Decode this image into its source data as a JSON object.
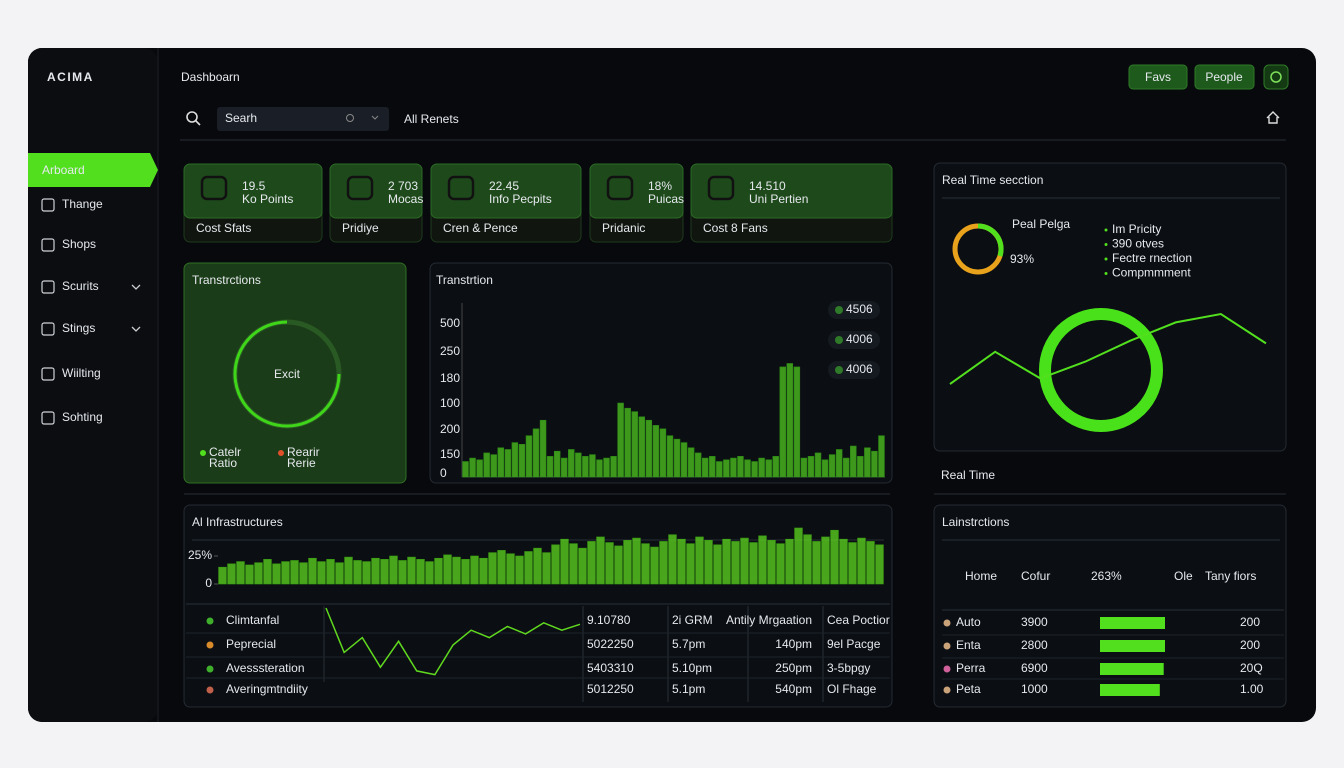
{
  "brand": "ACIMA",
  "header": {
    "title": "Dashboarn",
    "search_placeholder": "Searh",
    "filter": "All Renets",
    "buttons": [
      "Favs",
      "People"
    ]
  },
  "nav": [
    "Arboard",
    "Thange",
    "Shops",
    "Scurits",
    "Stings",
    "Wiilting",
    "Sohting"
  ],
  "stat_cards": [
    {
      "value": "19.5",
      "label": "Ko Points",
      "footer": "Cost Sfats"
    },
    {
      "value": "2 703",
      "label": "Mocas",
      "footer": "Pridiye"
    },
    {
      "value": "22.45",
      "label": "Info Pecpits",
      "footer": "Cren & Pence"
    },
    {
      "value": "18%",
      "label": "Puicas",
      "footer": "Pridanic"
    },
    {
      "value": "14.510",
      "label": "Uni Pertien",
      "footer": "Cost 8 Fans"
    }
  ],
  "donut_card": {
    "title": "Transtrctions",
    "center": "Excit",
    "legend": [
      {
        "name": "Catelr",
        "sub": "Ratio",
        "color": "#52e01e"
      },
      {
        "name": "Rearir",
        "sub": "Rerie",
        "color": "#e0502a"
      }
    ]
  },
  "transaction_chart": {
    "type": "bar",
    "title": "Transtrtion",
    "color": "#4fc71f",
    "y_labels": [
      "500",
      "250",
      "180",
      "100",
      "200",
      "150",
      "0"
    ],
    "legend": [
      "4506",
      "4006",
      "4006"
    ],
    "ylim": [
      0,
      500
    ],
    "values": [
      45,
      55,
      50,
      70,
      65,
      85,
      80,
      100,
      95,
      120,
      140,
      165,
      60,
      75,
      55,
      80,
      70,
      60,
      65,
      50,
      55,
      60,
      215,
      200,
      190,
      175,
      165,
      150,
      140,
      120,
      110,
      100,
      85,
      70,
      55,
      60,
      45,
      50,
      55,
      60,
      50,
      45,
      55,
      50,
      60,
      320,
      330,
      320,
      55,
      60,
      70,
      50,
      65,
      80,
      55,
      90,
      60,
      85,
      75,
      120
    ]
  },
  "infra_chart": {
    "type": "bar",
    "title": "Al Infrastructures",
    "color": "#5fd81f",
    "ylim": [
      0,
      50
    ],
    "yticks": [
      {
        "value": 25,
        "label": "25%"
      },
      0
    ],
    "values": [
      15,
      18,
      20,
      17,
      19,
      22,
      18,
      20,
      21,
      19,
      23,
      20,
      22,
      19,
      24,
      21,
      20,
      23,
      22,
      25,
      21,
      24,
      22,
      20,
      23,
      26,
      24,
      22,
      25,
      23,
      28,
      30,
      27,
      25,
      29,
      32,
      28,
      35,
      40,
      36,
      32,
      38,
      42,
      37,
      34,
      39,
      41,
      36,
      33,
      38,
      44,
      40,
      36,
      42,
      39,
      35,
      40,
      38,
      41,
      37,
      43,
      39,
      36,
      40,
      50,
      44,
      38,
      42,
      48,
      40,
      37,
      41,
      38,
      35
    ]
  },
  "table": {
    "trend": {
      "type": "line",
      "color": "#5fd81f",
      "ylim": [
        0,
        100
      ],
      "values": [
        100,
        40,
        60,
        20,
        55,
        15,
        10,
        50,
        70,
        60,
        75,
        65,
        80,
        70,
        78
      ]
    },
    "rows": [
      {
        "name": "Climtanfal",
        "color": "#3fae2a",
        "cells": [
          "9.10780",
          "2i GRM",
          "Antily Mrgaation",
          "Cea Poctior"
        ]
      },
      {
        "name": "Peprecial",
        "color": "#d98a2a",
        "cells": [
          "5022250",
          "5.7pm",
          "140pm",
          "9el Pacge"
        ]
      },
      {
        "name": "Avesssteration",
        "color": "#3fae2a",
        "cells": [
          "5403310",
          "5.10pm",
          "250pm",
          "3-5bpgy"
        ]
      },
      {
        "name": "Averingmtndiity",
        "color": "#c0604a",
        "cells": [
          "5012250",
          "5.1pm",
          "540pm",
          "Ol Fhage"
        ]
      }
    ]
  },
  "realtime": {
    "title": "Real Time secction",
    "gauge_label": "Peal Pelga",
    "gauge_value": "93%",
    "bullets": [
      "Im Pricity",
      "390 otves",
      "Fectre rnection",
      "Compmmment"
    ],
    "line": {
      "type": "line",
      "color": "#52e01e",
      "ylim": [
        0,
        100
      ],
      "values": [
        40,
        63,
        44,
        56,
        71,
        84,
        90,
        69
      ]
    },
    "footer": "Real Time"
  },
  "instructions": {
    "title": "Lainstrctions",
    "headers": [
      "Home",
      "Cofur",
      "263%",
      "Ole",
      "Tany fiors"
    ],
    "xlim": [
      0,
      100
    ],
    "rows": [
      {
        "name": "Auto",
        "color": "#c9a27a",
        "value": "3900",
        "bar": 100,
        "right": "200"
      },
      {
        "name": "Enta",
        "color": "#c9a27a",
        "value": "2800",
        "bar": 100,
        "right": "200"
      },
      {
        "name": "Perra",
        "color": "#d0609a",
        "value": "6900",
        "bar": 98,
        "right": "20Q"
      },
      {
        "name": "Peta",
        "color": "#c9a27a",
        "value": "1000",
        "bar": 92,
        "right": "1.00"
      }
    ]
  }
}
